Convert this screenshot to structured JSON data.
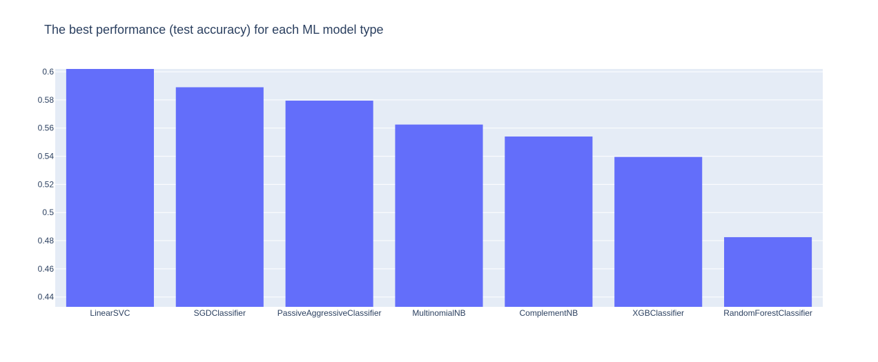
{
  "chart_data": {
    "type": "bar",
    "title": "The best performance (test accuracy) for each ML model type",
    "xlabel": "",
    "ylabel": "",
    "categories": [
      "LinearSVC",
      "SGDClassifier",
      "PassiveAggressiveClassifier",
      "MultinomialNB",
      "ComplementNB",
      "XGBClassifier",
      "RandomForestClassifier"
    ],
    "values": [
      0.602,
      0.589,
      0.5795,
      0.5625,
      0.554,
      0.5395,
      0.4825
    ],
    "ylim": [
      0.433,
      0.602
    ],
    "yticks": [
      0.44,
      0.46,
      0.48,
      0.5,
      0.52,
      0.54,
      0.56,
      0.58,
      0.6
    ],
    "ytick_labels": [
      "0.44",
      "0.46",
      "0.48",
      "0.5",
      "0.52",
      "0.54",
      "0.56",
      "0.58",
      "0.6"
    ],
    "grid": true,
    "legend": "none",
    "colors": {
      "bar": "#636efa",
      "plot_background": "#e5ecf6",
      "gridline": "#ffffff",
      "text": "#2a3f5f",
      "title": "#2a3f5f"
    }
  }
}
